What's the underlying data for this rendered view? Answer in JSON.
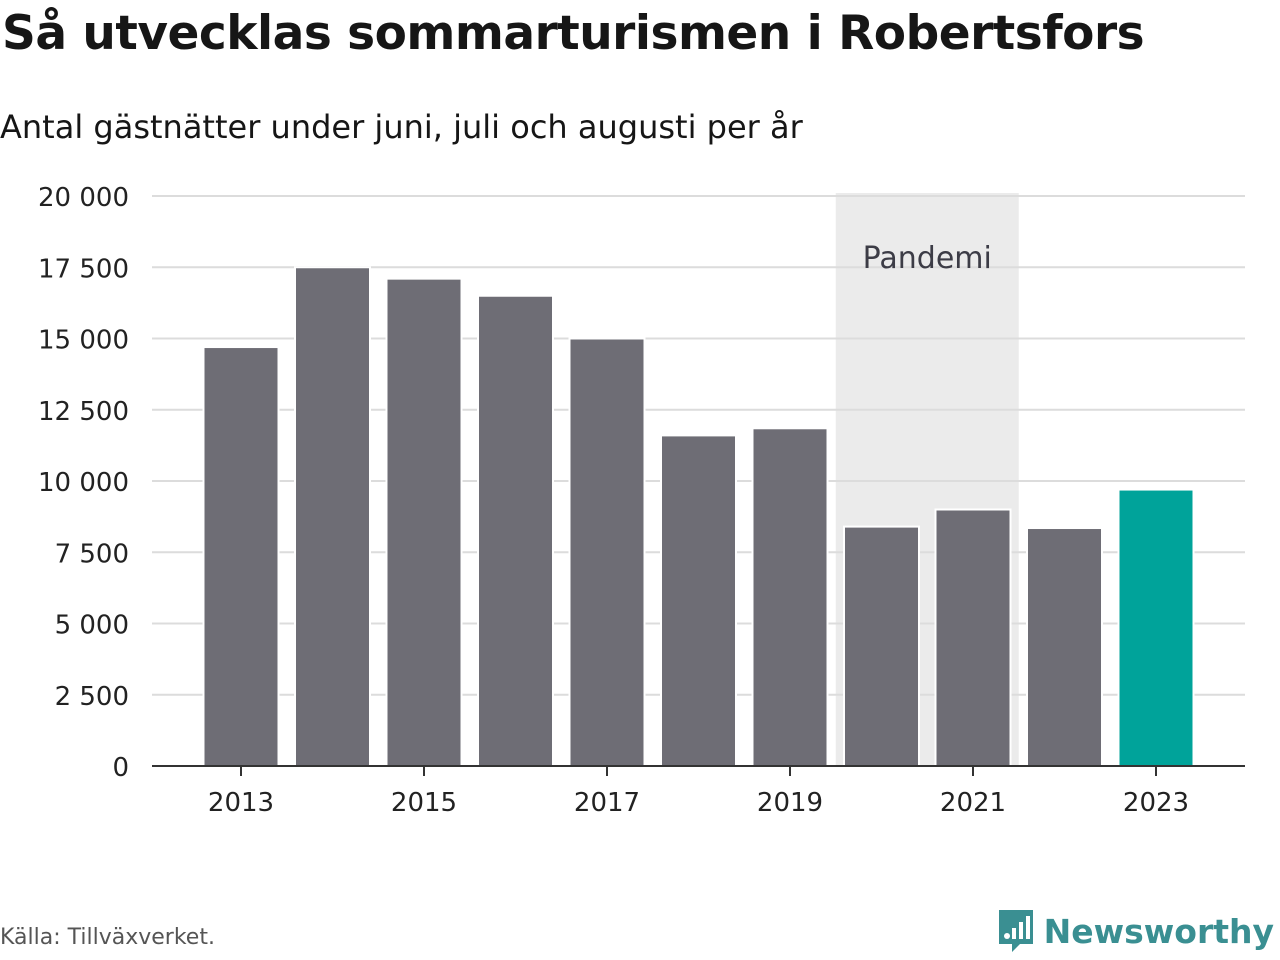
{
  "title": "Så utvecklas sommarturismen i Robertsfors",
  "subtitle": "Antal gästnätter under juni, juli och augusti per år",
  "source": "Källa: Tillväxverket.",
  "brand": {
    "name": "Newsworthy",
    "icon": "newsworthy-logo-icon",
    "color": "#3a8f92"
  },
  "chart_data": {
    "type": "bar",
    "title": "Så utvecklas sommarturismen i Robertsfors",
    "subtitle": "Antal gästnätter under juni, juli och augusti per år",
    "xlabel": "",
    "ylabel": "",
    "categories": [
      "2013",
      "2014",
      "2015",
      "2016",
      "2017",
      "2018",
      "2019",
      "2020",
      "2021",
      "2022",
      "2023"
    ],
    "values": [
      14700,
      17500,
      17100,
      16500,
      15000,
      11600,
      11850,
      8400,
      9000,
      8350,
      9700
    ],
    "highlight_index": 10,
    "bar_color": "#6e6d75",
    "highlight_color": "#00a39a",
    "ylim": [
      0,
      20000
    ],
    "yticks": [
      0,
      2500,
      5000,
      7500,
      10000,
      12500,
      15000,
      17500,
      20000
    ],
    "ytick_labels": [
      "0",
      "2 500",
      "5 000",
      "7 500",
      "10 000",
      "12 500",
      "15 000",
      "17 500",
      "20 000"
    ],
    "xtick_labels": [
      "2013",
      "2015",
      "2017",
      "2019",
      "2021",
      "2023"
    ],
    "grid": true,
    "annotation": {
      "label": "Pandemi",
      "from": "2020",
      "to": "2021",
      "color": "#ebebeb"
    }
  }
}
